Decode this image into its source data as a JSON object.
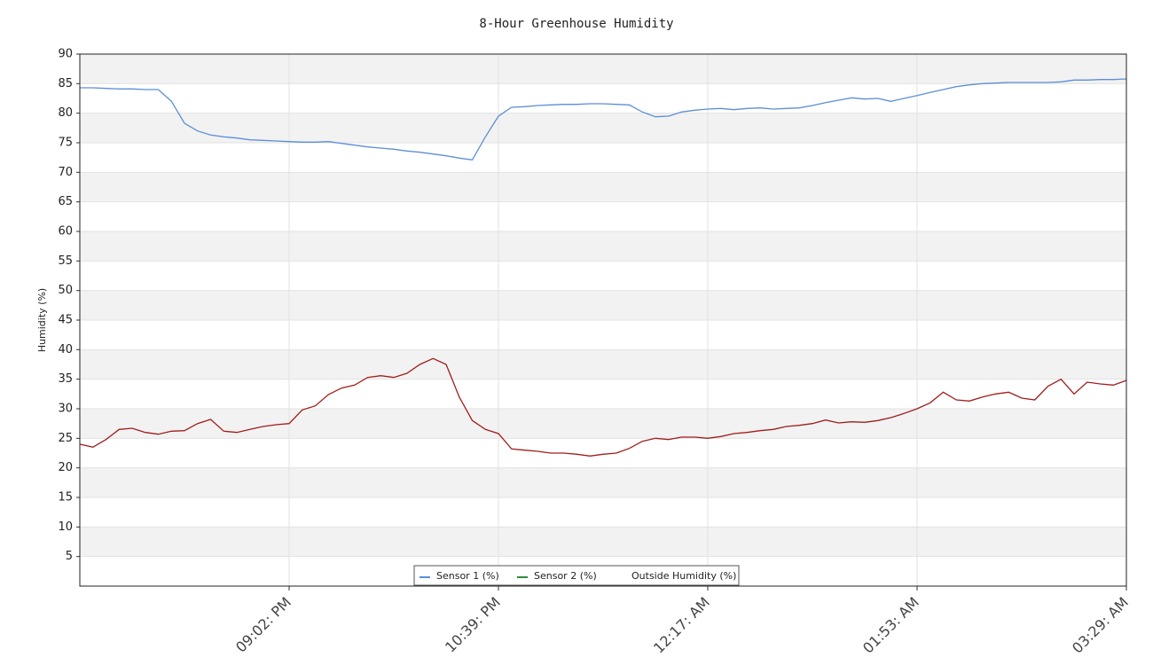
{
  "chart_data": {
    "type": "line",
    "title": "8-Hour Greenhouse Humidity",
    "y_label": "Humidity (%)",
    "categories": [
      null,
      null,
      null,
      null,
      null,
      null,
      null,
      null,
      null,
      null,
      null,
      null,
      null,
      null,
      null,
      null,
      "09:02: PM",
      null,
      null,
      null,
      null,
      null,
      null,
      null,
      null,
      null,
      null,
      null,
      null,
      null,
      null,
      null,
      "10:39: PM",
      null,
      null,
      null,
      null,
      null,
      null,
      null,
      null,
      null,
      null,
      null,
      null,
      null,
      null,
      null,
      "12:17: AM",
      null,
      null,
      null,
      null,
      null,
      null,
      null,
      null,
      null,
      null,
      null,
      null,
      null,
      null,
      null,
      "01:53: AM",
      null,
      null,
      null,
      null,
      null,
      null,
      null,
      null,
      null,
      null,
      null,
      null,
      null,
      null,
      null,
      "03:29: AM"
    ],
    "series": [
      {
        "name": "Sensor 1 (%)",
        "color": "#5b8fd6",
        "line_color": "#5b8fd6",
        "values": [
          84.3,
          84.3,
          84.2,
          84.1,
          84.1,
          84.0,
          84.0,
          82.0,
          78.3,
          77.0,
          76.3,
          76.0,
          75.8,
          75.5,
          75.4,
          75.3,
          75.2,
          75.1,
          75.1,
          75.2,
          74.9,
          74.6,
          74.3,
          74.1,
          73.9,
          73.6,
          73.4,
          73.1,
          72.8,
          72.4,
          72.1,
          76.0,
          79.5,
          81.0,
          81.1,
          81.3,
          81.4,
          81.5,
          81.5,
          81.6,
          81.6,
          81.5,
          81.4,
          80.2,
          79.4,
          79.5,
          80.2,
          80.5,
          80.7,
          80.8,
          80.6,
          80.8,
          80.9,
          80.7,
          80.8,
          80.9,
          81.3,
          81.8,
          82.2,
          82.6,
          82.4,
          82.5,
          82.0,
          82.5,
          83.0,
          83.5,
          84.0,
          84.5,
          84.8,
          85.0,
          85.1,
          85.2,
          85.2,
          85.2,
          85.2,
          85.3,
          85.6,
          85.6,
          85.7,
          85.7,
          85.8
        ]
      },
      {
        "name": "Sensor 2 (%)",
        "color": "#2e8b3e",
        "line_color": "#a01c1c",
        "values": [
          24,
          23.5,
          24.8,
          26.5,
          26.7,
          26,
          25.7,
          26.2,
          26.3,
          27.5,
          28.2,
          26.2,
          26,
          26.5,
          27,
          27.3,
          27.5,
          29.8,
          30.5,
          32.4,
          33.5,
          34,
          35.3,
          35.6,
          35.3,
          36,
          37.5,
          38.5,
          37.5,
          32,
          28,
          26.5,
          25.8,
          23.2,
          23,
          22.8,
          22.5,
          22.5,
          22.3,
          22,
          22.3,
          22.5,
          23.3,
          24.5,
          25,
          24.8,
          25.2,
          25.2,
          25,
          25.3,
          25.8,
          26,
          26.3,
          26.5,
          27,
          27.2,
          27.5,
          28.1,
          27.6,
          27.8,
          27.7,
          28,
          28.5,
          29.2,
          30,
          31,
          32.8,
          31.5,
          31.3,
          32,
          32.5,
          32.8,
          31.8,
          31.5,
          33.8,
          35,
          32.5,
          34.5,
          34.2,
          34,
          34.8
        ]
      },
      {
        "name": "Outside Humidity (%)",
        "color": "#ffffff",
        "line_color": "#ffffff",
        "values": [
          null,
          null,
          null,
          null,
          null,
          null,
          null,
          null,
          null,
          null,
          null,
          null,
          null,
          null,
          null,
          null,
          null,
          null,
          null,
          null,
          null,
          null,
          null,
          null,
          null,
          null,
          null,
          null,
          null,
          null,
          null,
          null,
          null,
          null,
          null,
          null,
          null,
          null,
          null,
          null,
          null,
          null,
          null,
          null,
          null,
          null,
          null,
          null,
          null,
          null,
          null,
          null,
          null,
          null,
          null,
          null,
          null,
          null,
          null,
          null,
          null,
          null,
          null,
          null,
          null,
          null,
          null,
          null,
          null,
          null,
          null,
          null,
          null,
          null,
          null,
          null,
          null,
          null,
          null,
          null,
          null
        ]
      }
    ],
    "ylim": [
      0,
      90
    ],
    "yticks": [
      5,
      10,
      15,
      20,
      25,
      30,
      35,
      40,
      45,
      50,
      55,
      60,
      65,
      70,
      75,
      80,
      85,
      90
    ],
    "grid": true,
    "bands": true,
    "legend": "bottom"
  }
}
